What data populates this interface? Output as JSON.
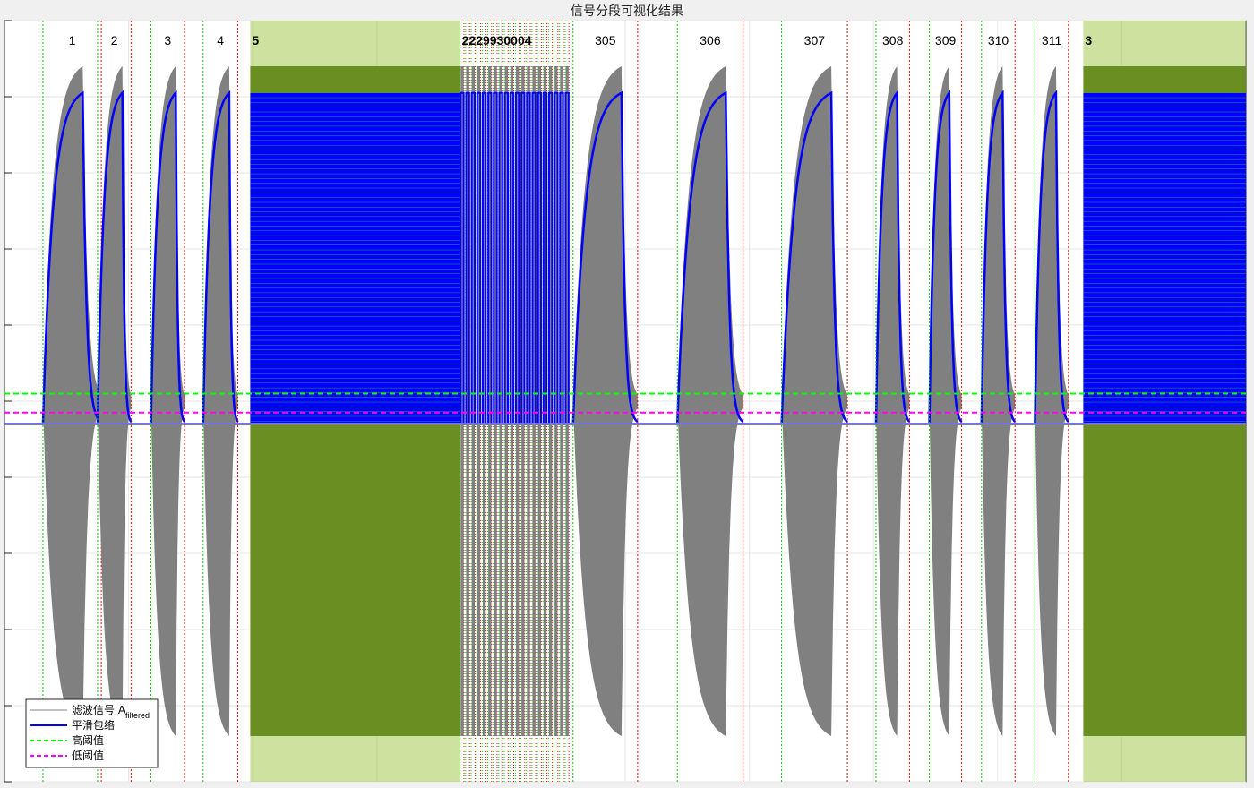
{
  "chart_data": {
    "type": "line",
    "title": "信号分段可视化结果",
    "xlabel": "",
    "ylabel": "",
    "grid": true,
    "legend_position": "bottom-left",
    "legend": [
      {
        "label": "滤波信号 A",
        "subscript": "filtered",
        "color": "#808080",
        "style": "solid"
      },
      {
        "label": "平滑包络",
        "color": "#0000ff",
        "style": "solid"
      },
      {
        "label": "高阈值",
        "color": "#00ff00",
        "style": "dashed"
      },
      {
        "label": "低阈值",
        "color": "#ff00ff",
        "style": "dashed"
      }
    ],
    "x_range": [
      0,
      1000
    ],
    "y_range": [
      -1,
      1
    ],
    "high_threshold": 0.02,
    "low_threshold": -0.03,
    "baseline": -0.06,
    "envelope_peak": 0.81,
    "signal_peak": 0.88,
    "signal_trough": -0.88,
    "segments": [
      {
        "label": "1",
        "start": 31,
        "peak": 63,
        "end": 78
      },
      {
        "label": "2",
        "start": 75,
        "peak": 95,
        "end": 102
      },
      {
        "label": "3",
        "start": 118,
        "peak": 138,
        "end": 145
      },
      {
        "label": "4",
        "start": 160,
        "peak": 181,
        "end": 188
      },
      {
        "label": "305",
        "start": 458,
        "peak": 497,
        "end": 510
      },
      {
        "label": "306",
        "start": 542,
        "peak": 581,
        "end": 595
      },
      {
        "label": "307",
        "start": 626,
        "peak": 666,
        "end": 679
      },
      {
        "label": "308",
        "start": 702,
        "peak": 719,
        "end": 729
      },
      {
        "label": "309",
        "start": 745,
        "peak": 761,
        "end": 771
      },
      {
        "label": "310",
        "start": 787,
        "peak": 804,
        "end": 814
      },
      {
        "label": "311",
        "start": 830,
        "peak": 847,
        "end": 857
      }
    ],
    "dense_blocks": [
      {
        "start": 198,
        "end": 367,
        "label": "5"
      },
      {
        "start": 367,
        "end": 456,
        "label": "2229930004"
      },
      {
        "start": 869,
        "end": 1000,
        "label": "3"
      }
    ],
    "gap_markers": [
      {
        "label": "4",
        "x": 172
      }
    ]
  },
  "colors": {
    "signal": "#808080",
    "envelope": "#0000ff",
    "high_threshold": "#00ff00",
    "low_threshold": "#ff00ff",
    "start_marker": "#00cc00",
    "end_marker": "#ff0000",
    "dense_fill": "#6b8e23",
    "axes_bg": "#ffffff",
    "grid": "#e6e6e6"
  }
}
